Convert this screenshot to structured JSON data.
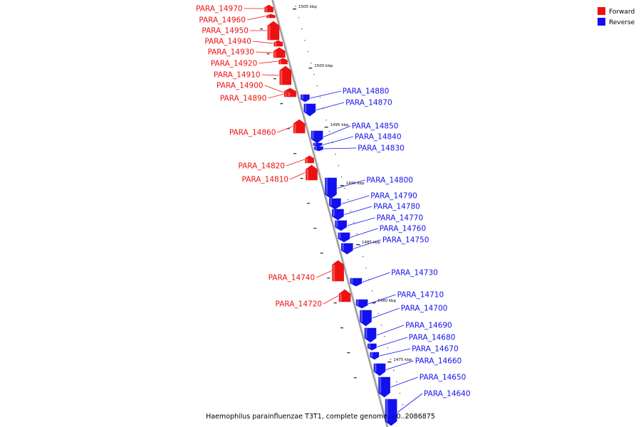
{
  "legend": [
    {
      "label": "Forward",
      "color": "#ee1111"
    },
    {
      "label": "Reverse",
      "color": "#1111ee"
    }
  ],
  "colors": {
    "forward": "#ee1111",
    "reverse": "#1111ee",
    "backbone": "#9a9a9a"
  },
  "caption": "Haemophilus parainfluenzae T3T1, complete genome. - 0..2086875",
  "ticks": [
    "1505 kbp",
    "1500 kbp",
    "1495 kbp",
    "1490 kbp",
    "1485 kbp",
    "1480 kbp",
    "1475 kbp"
  ],
  "genes": [
    {
      "id": "PARA_14970",
      "strand": "forward"
    },
    {
      "id": "PARA_14960",
      "strand": "forward"
    },
    {
      "id": "PARA_14950",
      "strand": "forward"
    },
    {
      "id": "PARA_14940",
      "strand": "forward"
    },
    {
      "id": "PARA_14930",
      "strand": "forward"
    },
    {
      "id": "PARA_14920",
      "strand": "forward"
    },
    {
      "id": "PARA_14910",
      "strand": "forward"
    },
    {
      "id": "PARA_14900",
      "strand": "forward"
    },
    {
      "id": "PARA_14890",
      "strand": "forward"
    },
    {
      "id": "PARA_14880",
      "strand": "reverse"
    },
    {
      "id": "PARA_14870",
      "strand": "reverse"
    },
    {
      "id": "PARA_14860",
      "strand": "forward"
    },
    {
      "id": "PARA_14850",
      "strand": "reverse"
    },
    {
      "id": "PARA_14840",
      "strand": "reverse"
    },
    {
      "id": "PARA_14830",
      "strand": "reverse"
    },
    {
      "id": "PARA_14820",
      "strand": "forward"
    },
    {
      "id": "PARA_14810",
      "strand": "forward"
    },
    {
      "id": "PARA_14800",
      "strand": "reverse"
    },
    {
      "id": "PARA_14790",
      "strand": "reverse"
    },
    {
      "id": "PARA_14780",
      "strand": "reverse"
    },
    {
      "id": "PARA_14770",
      "strand": "reverse"
    },
    {
      "id": "PARA_14760",
      "strand": "reverse"
    },
    {
      "id": "PARA_14750",
      "strand": "reverse"
    },
    {
      "id": "PARA_14740",
      "strand": "forward"
    },
    {
      "id": "PARA_14730",
      "strand": "reverse"
    },
    {
      "id": "PARA_14720",
      "strand": "forward"
    },
    {
      "id": "PARA_14710",
      "strand": "reverse"
    },
    {
      "id": "PARA_14700",
      "strand": "reverse"
    },
    {
      "id": "PARA_14690",
      "strand": "reverse"
    },
    {
      "id": "PARA_14680",
      "strand": "reverse"
    },
    {
      "id": "PARA_14670",
      "strand": "reverse"
    },
    {
      "id": "PARA_14660",
      "strand": "reverse"
    },
    {
      "id": "PARA_14650",
      "strand": "reverse"
    },
    {
      "id": "PARA_14640",
      "strand": "reverse"
    }
  ]
}
